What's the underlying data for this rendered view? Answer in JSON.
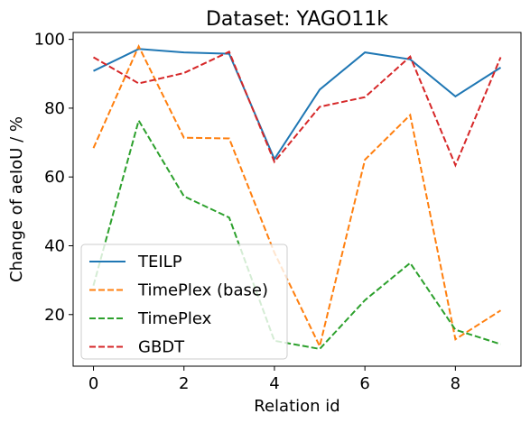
{
  "chart_data": {
    "type": "line",
    "title": "Dataset: YAGO11k",
    "xlabel": "Relation id",
    "ylabel": "Change of aeIoU / %",
    "x": [
      0,
      1,
      2,
      3,
      4,
      5,
      6,
      7,
      8,
      9
    ],
    "xlim": [
      -0.45,
      9.45
    ],
    "ylim": [
      5,
      102
    ],
    "xticks": [
      "0",
      "2",
      "4",
      "6",
      "8"
    ],
    "yticks": [
      "20",
      "40",
      "60",
      "80",
      "100"
    ],
    "grid": false,
    "legend": "lower-left",
    "series": [
      {
        "name": "TEILP",
        "color": "#1f77b4",
        "style": "solid",
        "values": [
          90.8,
          97.2,
          96.2,
          95.8,
          65.2,
          85.4,
          96.2,
          94.2,
          83.4,
          91.8
        ]
      },
      {
        "name": "TimePlex (base)",
        "color": "#ff7f0e",
        "style": "dashed",
        "values": [
          68.4,
          98.0,
          71.4,
          71.2,
          38.0,
          10.8,
          65.0,
          78.0,
          12.8,
          21.2
        ]
      },
      {
        "name": "TimePlex",
        "color": "#2ca02c",
        "style": "dashed",
        "values": [
          28.4,
          76.4,
          54.4,
          48.2,
          12.4,
          10.0,
          24.2,
          35.0,
          15.6,
          11.4
        ]
      },
      {
        "name": "GBDT",
        "color": "#d62728",
        "style": "dashed",
        "values": [
          94.8,
          87.2,
          90.2,
          96.4,
          64.4,
          80.4,
          83.2,
          95.0,
          63.4,
          94.8
        ]
      }
    ]
  }
}
